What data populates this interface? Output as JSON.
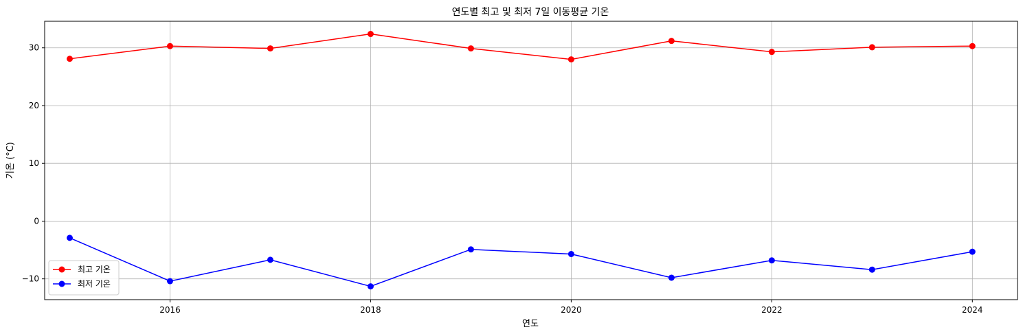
{
  "chart_data": {
    "type": "line",
    "title": "연도별 최고 및 최저 7일 이동평균 기온",
    "xlabel": "연도",
    "ylabel": "기온 (°C)",
    "x": [
      2015,
      2016,
      2017,
      2018,
      2019,
      2020,
      2021,
      2022,
      2023,
      2024
    ],
    "xlim": [
      2014.75,
      2024.45
    ],
    "ylim": [
      -13.6,
      34.6
    ],
    "xticks": [
      2016,
      2018,
      2020,
      2022,
      2024
    ],
    "yticks": [
      -10,
      0,
      10,
      20,
      30
    ],
    "grid": true,
    "legend_position": "lower-left",
    "series": [
      {
        "name": "최고 기온",
        "color": "#ff0000",
        "marker": "circle",
        "values": [
          28.1,
          30.3,
          29.9,
          32.4,
          29.9,
          28.0,
          31.2,
          29.3,
          30.1,
          30.3
        ]
      },
      {
        "name": "최저 기온",
        "color": "#0000ff",
        "marker": "circle",
        "values": [
          -2.9,
          -10.4,
          -6.7,
          -11.3,
          -4.9,
          -5.7,
          -9.8,
          -6.8,
          -8.4,
          -5.3
        ]
      }
    ]
  }
}
